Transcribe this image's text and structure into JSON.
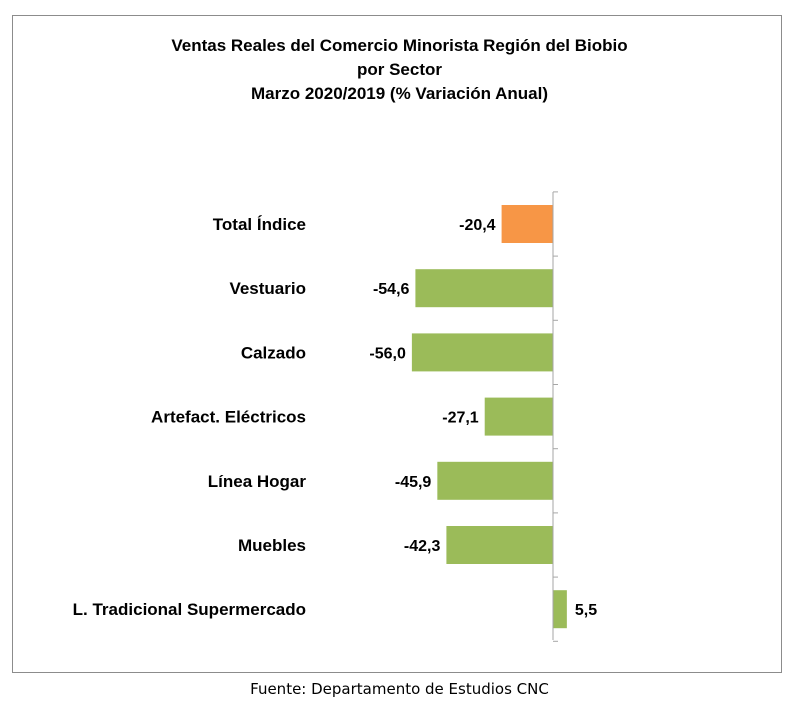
{
  "chart_data": {
    "type": "bar",
    "orientation": "horizontal",
    "title_lines": [
      "Ventas Reales del Comercio Minorista  Región del Biobio",
      "por Sector",
      "Marzo 2020/2019 (% Variación Anual)"
    ],
    "categories": [
      "Total Índice",
      "Vestuario",
      "Calzado",
      "Artefact. Eléctricos",
      "Línea Hogar",
      "Muebles",
      "L. Tradicional Supermercado"
    ],
    "values": [
      -20.4,
      -54.6,
      -56.0,
      -27.1,
      -45.9,
      -42.3,
      5.5
    ],
    "data_labels": [
      "-20,4",
      "-54,6",
      "-56,0",
      "-27,1",
      "-45,9",
      "-42,3",
      "5,5"
    ],
    "bar_colors": [
      "#f79646",
      "#9bbb59",
      "#9bbb59",
      "#9bbb59",
      "#9bbb59",
      "#9bbb59",
      "#9bbb59"
    ],
    "axis_color": "#a6a6a6",
    "grid": false,
    "legend": "none"
  },
  "source_note": "Fuente: Departamento de Estudios CNC"
}
